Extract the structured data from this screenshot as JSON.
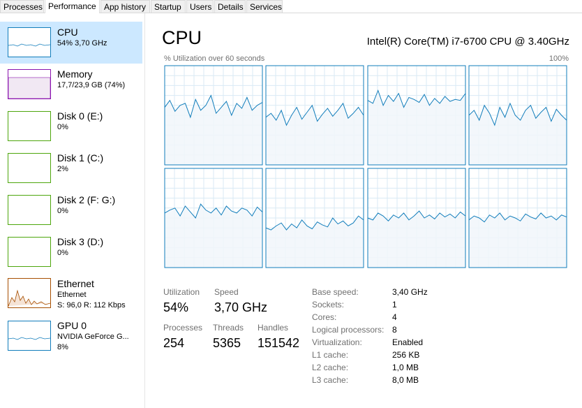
{
  "tabs": [
    "Processes",
    "Performance",
    "App history",
    "Startup",
    "Users",
    "Details",
    "Services"
  ],
  "sidebar": [
    {
      "name": "CPU",
      "details": [
        "54% 3,70 GHz"
      ]
    },
    {
      "name": "Memory",
      "details": [
        "17,7/23,9 GB (74%)"
      ]
    },
    {
      "name": "Disk 0 (E:)",
      "details": [
        "0%"
      ]
    },
    {
      "name": "Disk 1 (C:)",
      "details": [
        "2%"
      ]
    },
    {
      "name": "Disk 2 (F: G:)",
      "details": [
        "0%"
      ]
    },
    {
      "name": "Disk 3 (D:)",
      "details": [
        "0%"
      ]
    },
    {
      "name": "Ethernet",
      "details": [
        "Ethernet",
        "S: 96,0  R: 112 Kbps"
      ]
    },
    {
      "name": "GPU 0",
      "details": [
        "NVIDIA GeForce G...",
        "8%"
      ]
    }
  ],
  "header": {
    "title": "CPU",
    "processor": "Intel(R) Core(TM) i7-6700 CPU @ 3.40GHz"
  },
  "graph": {
    "caption": "% Utilization over 60 seconds",
    "max": {
      "value": 100,
      "label": "100%"
    },
    "cores": [
      [
        58,
        65,
        54,
        60,
        62,
        48,
        66,
        55,
        60,
        70,
        52,
        58,
        64,
        50,
        62,
        57,
        68,
        55,
        60,
        63
      ],
      [
        48,
        52,
        45,
        55,
        40,
        50,
        58,
        46,
        53,
        60,
        44,
        51,
        57,
        49,
        55,
        62,
        47,
        52,
        58,
        50
      ],
      [
        65,
        62,
        75,
        60,
        70,
        64,
        72,
        58,
        68,
        66,
        63,
        71,
        60,
        67,
        62,
        69,
        64,
        66,
        65,
        72
      ],
      [
        50,
        55,
        45,
        60,
        52,
        40,
        58,
        48,
        62,
        50,
        45,
        55,
        60,
        47,
        53,
        58,
        44,
        56,
        50,
        45
      ],
      [
        55,
        58,
        60,
        52,
        62,
        56,
        50,
        64,
        58,
        55,
        60,
        53,
        62,
        57,
        55,
        60,
        58,
        52,
        61,
        56
      ],
      [
        40,
        38,
        42,
        45,
        38,
        44,
        40,
        48,
        42,
        39,
        46,
        43,
        41,
        50,
        44,
        47,
        42,
        45,
        52,
        48
      ],
      [
        50,
        48,
        55,
        52,
        47,
        53,
        50,
        55,
        48,
        52,
        57,
        50,
        53,
        49,
        55,
        51,
        54,
        50,
        56,
        52
      ],
      [
        48,
        52,
        50,
        46,
        53,
        50,
        55,
        48,
        52,
        50,
        47,
        54,
        51,
        49,
        55,
        50,
        52,
        48,
        53,
        51
      ]
    ]
  },
  "stats": [
    {
      "label": "Utilization",
      "value": "54%"
    },
    {
      "label": "Speed",
      "value": "3,70 GHz"
    },
    {
      "label": "Processes",
      "value": "254"
    },
    {
      "label": "Threads",
      "value": "5365"
    },
    {
      "label": "Handles",
      "value": "151542"
    }
  ],
  "specs": [
    {
      "label": "Base speed:",
      "value": "3,40 GHz"
    },
    {
      "label": "Sockets:",
      "value": "1"
    },
    {
      "label": "Cores:",
      "value": "4"
    },
    {
      "label": "Logical processors:",
      "value": "8"
    },
    {
      "label": "Virtualization:",
      "value": "Enabled"
    },
    {
      "label": "L1 cache:",
      "value": "256 KB"
    },
    {
      "label": "L2 cache:",
      "value": "1,0 MB"
    },
    {
      "label": "L3 cache:",
      "value": "8,0 MB"
    }
  ]
}
